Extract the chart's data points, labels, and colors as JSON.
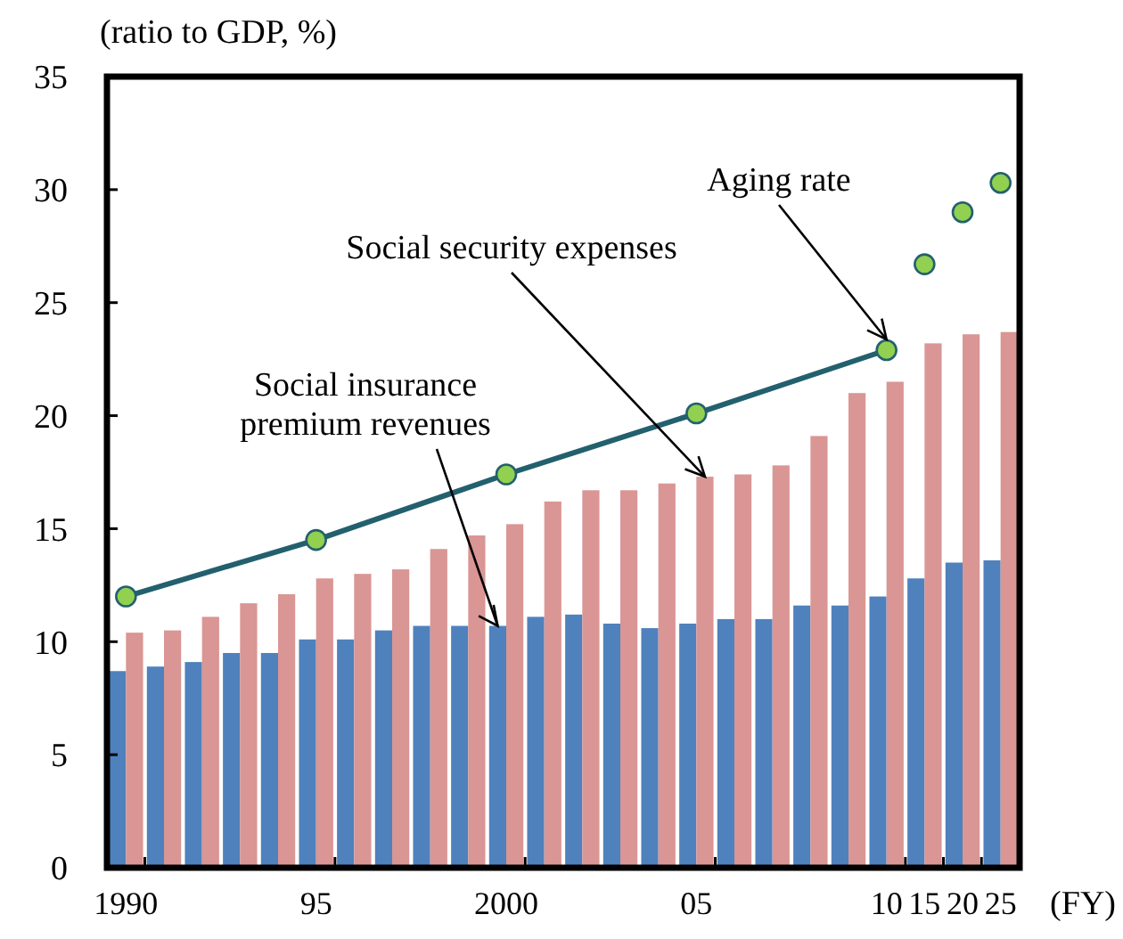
{
  "chart_data": {
    "type": "bar",
    "ylabel": "(ratio to GDP, %)",
    "xlabel": "(FY)",
    "categories": [
      "1990",
      null,
      null,
      null,
      null,
      "95",
      null,
      null,
      null,
      null,
      "2000",
      null,
      null,
      null,
      null,
      "05",
      null,
      null,
      null,
      null,
      "10",
      "15",
      "20",
      "25"
    ],
    "ylim": [
      0,
      35
    ],
    "yticks": [
      0,
      5,
      10,
      15,
      20,
      25,
      30,
      35
    ],
    "grid": false,
    "series": [
      {
        "name": "Social insurance premium revenues",
        "color": "#4f81bd",
        "values": [
          8.7,
          8.9,
          9.1,
          9.5,
          9.5,
          10.1,
          10.1,
          10.5,
          10.7,
          10.7,
          10.7,
          11.1,
          11.2,
          10.8,
          10.6,
          10.8,
          11.0,
          11.0,
          11.6,
          11.6,
          12.0,
          12.8,
          13.5,
          13.6
        ]
      },
      {
        "name": "Social security expenses",
        "color": "#d99694",
        "values": [
          10.4,
          10.5,
          11.1,
          11.7,
          12.1,
          12.8,
          13.0,
          13.2,
          14.1,
          14.7,
          15.2,
          16.2,
          16.7,
          16.7,
          17.0,
          17.3,
          17.4,
          17.8,
          19.1,
          21.0,
          21.5,
          23.2,
          23.6,
          23.7
        ]
      },
      {
        "name": "Aging rate",
        "type": "line",
        "color": "#23606e",
        "marker": "circle",
        "line_style": "solid",
        "values": [
          12.0,
          null,
          null,
          null,
          null,
          14.5,
          null,
          null,
          null,
          null,
          17.4,
          null,
          null,
          null,
          null,
          20.1,
          null,
          null,
          null,
          null,
          22.9,
          null,
          null,
          null
        ]
      },
      {
        "type": "scatter",
        "color": "#92d050",
        "marker": "circle",
        "values": [
          null,
          null,
          null,
          null,
          null,
          null,
          null,
          null,
          null,
          null,
          null,
          null,
          null,
          null,
          null,
          null,
          null,
          null,
          null,
          null,
          null,
          26.7,
          29.0,
          30.3
        ]
      }
    ]
  }
}
